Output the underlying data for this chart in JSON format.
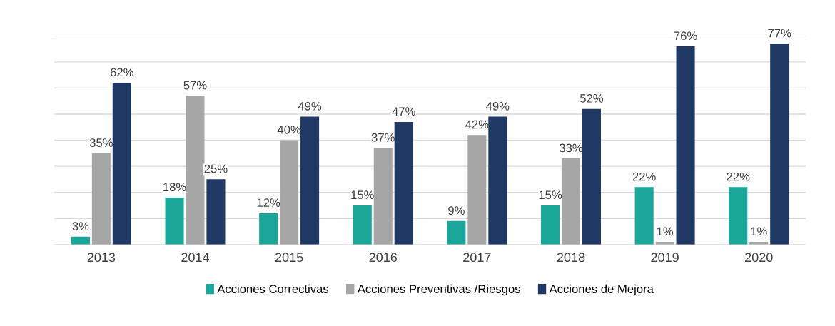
{
  "chart_data": {
    "type": "bar",
    "categories": [
      "2013",
      "2014",
      "2015",
      "2016",
      "2017",
      "2018",
      "2019",
      "2020"
    ],
    "series": [
      {
        "name": "Acciones Correctivas",
        "color": "#1aa79a",
        "values": [
          3,
          18,
          12,
          15,
          9,
          15,
          22,
          22
        ],
        "value_labels": [
          "3%",
          "18%",
          "12%",
          "15%",
          "9%",
          "15%",
          "22%",
          "22%"
        ]
      },
      {
        "name": "Acciones Preventivas /Riesgos",
        "color": "#a6a6a6",
        "values": [
          35,
          57,
          40,
          37,
          42,
          33,
          1,
          1
        ],
        "value_labels": [
          "35%",
          "57%",
          "40%",
          "37%",
          "42%",
          "33%",
          "1%",
          "1%"
        ]
      },
      {
        "name": "Acciones de Mejora",
        "color": "#1f3864",
        "values": [
          62,
          25,
          49,
          47,
          49,
          52,
          76,
          77
        ],
        "value_labels": [
          "62%",
          "25%",
          "49%",
          "47%",
          "49%",
          "52%",
          "76%",
          "77%"
        ]
      }
    ],
    "ylim": [
      0,
      80
    ],
    "yticks": [
      {
        "value": 0,
        "label": null
      },
      {
        "value": 10,
        "label": null
      },
      {
        "value": 20,
        "label": null
      },
      {
        "value": 30,
        "label": null
      },
      {
        "value": 40,
        "label": null
      },
      {
        "value": 50,
        "label": null
      },
      {
        "value": 60,
        "label": null
      },
      {
        "value": 70,
        "label": null
      },
      {
        "value": 80,
        "label": null
      }
    ],
    "tick_labels": "x",
    "grid": "y",
    "legend": "bottom"
  }
}
